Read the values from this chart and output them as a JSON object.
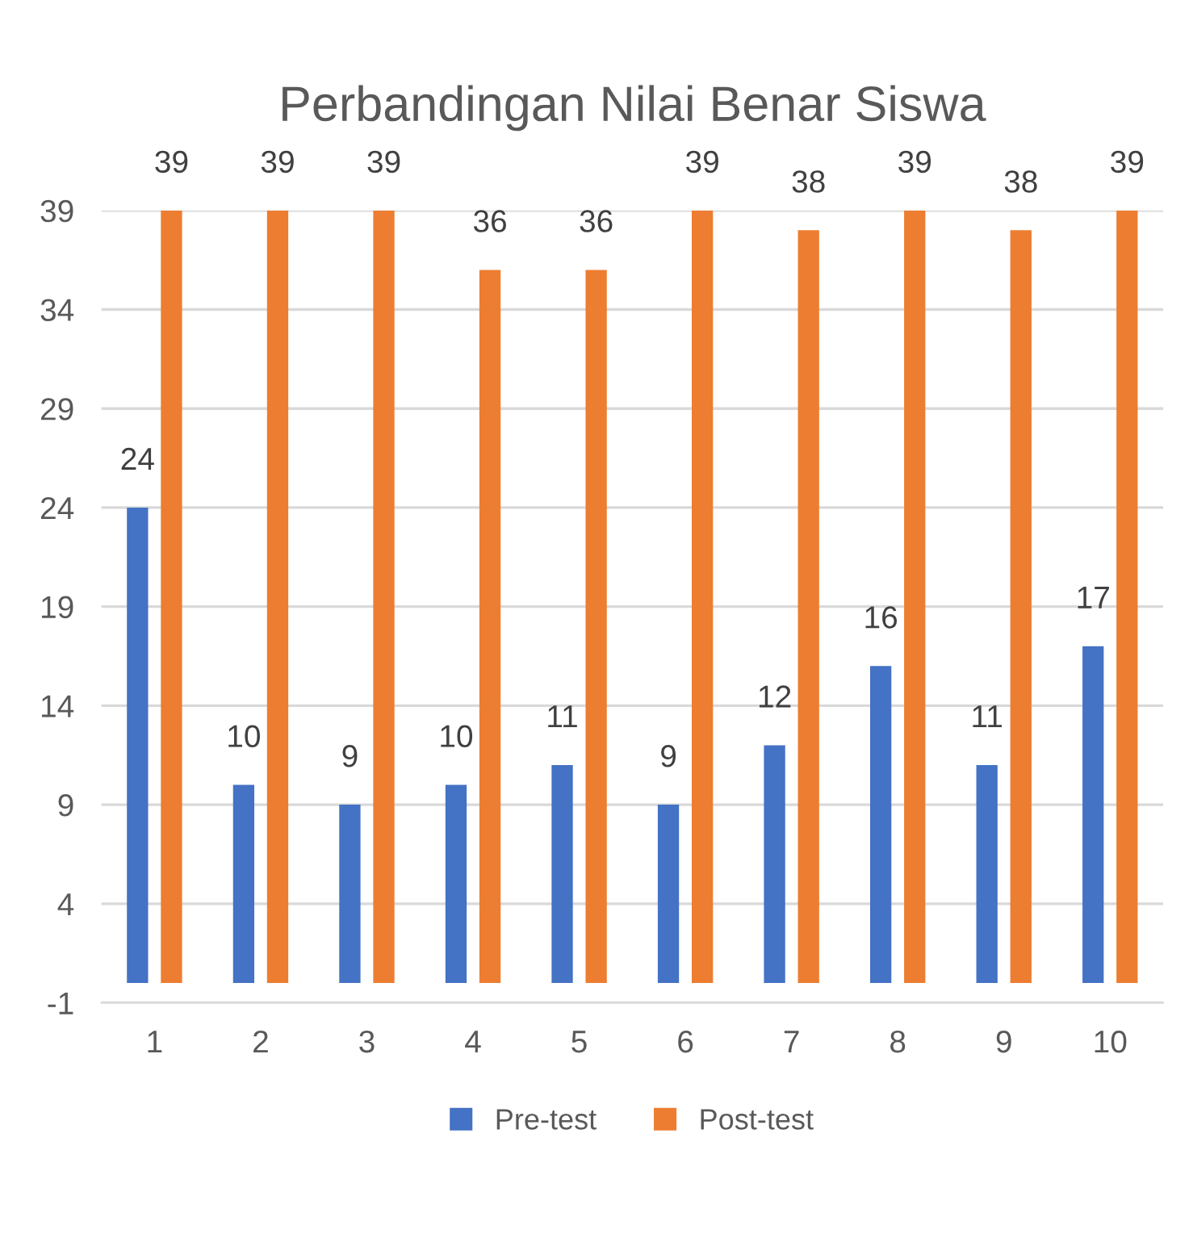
{
  "chart_data": {
    "type": "bar",
    "title": "Perbandingan Nilai Benar Siswa",
    "categories": [
      "1",
      "2",
      "3",
      "4",
      "5",
      "6",
      "7",
      "8",
      "9",
      "10"
    ],
    "series": [
      {
        "name": "Pre-test",
        "color": "#4472c4",
        "values": [
          24,
          10,
          9,
          10,
          11,
          9,
          12,
          16,
          11,
          17
        ]
      },
      {
        "name": "Post-test",
        "color": "#ed7d31",
        "values": [
          39,
          39,
          39,
          36,
          36,
          39,
          38,
          39,
          38,
          39
        ]
      }
    ],
    "ylim": [
      -1,
      39
    ],
    "yticks": [
      -1,
      4,
      9,
      14,
      19,
      24,
      29,
      34,
      39
    ],
    "grid": "y",
    "legend": "bottom",
    "data_labels": true
  }
}
